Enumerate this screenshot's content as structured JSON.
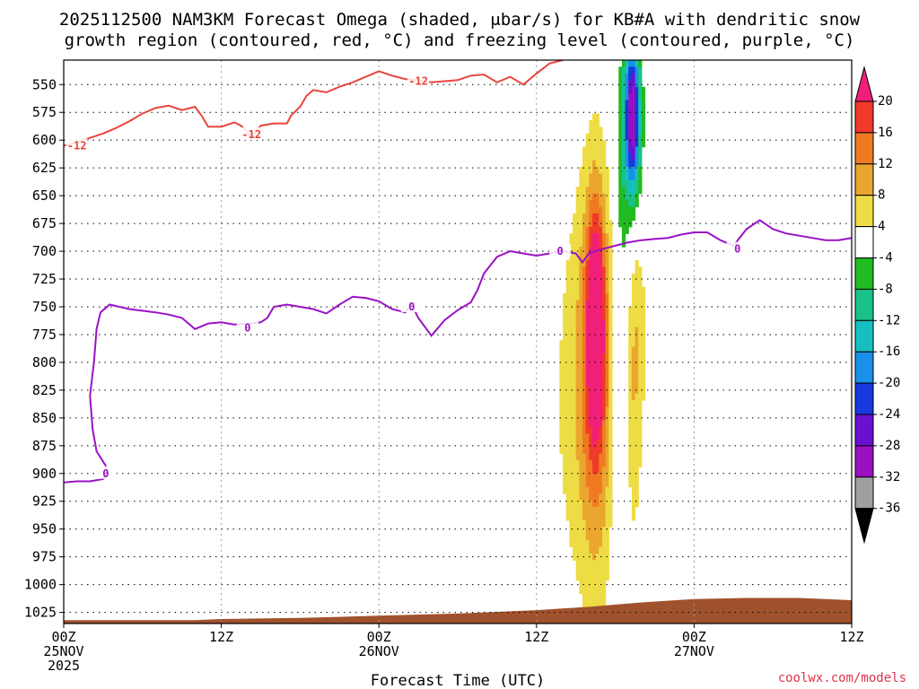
{
  "chart_data": {
    "type": "heatmap",
    "title": "2025112500 NAM3KM Forecast Omega (shaded, μbar/s) for KB#A with dendritic snow",
    "subtitle": "growth region (contoured, red, °C) and freezing level (contoured, purple, °C)",
    "xlabel": "Forecast Time (UTC)",
    "ylabel": "",
    "credit": "coolwx.com/models",
    "x_unit": "forecast hours",
    "xlim": [
      0,
      60
    ],
    "x_ticks": [
      {
        "h": 0,
        "l1": "00Z",
        "l2": "25NOV",
        "l3": "2025"
      },
      {
        "h": 12,
        "l1": "12Z",
        "l2": "",
        "l3": ""
      },
      {
        "h": 24,
        "l1": "00Z",
        "l2": "26NOV",
        "l3": ""
      },
      {
        "h": 36,
        "l1": "12Z",
        "l2": "",
        "l3": ""
      },
      {
        "h": 48,
        "l1": "00Z",
        "l2": "27NOV",
        "l3": ""
      },
      {
        "h": 60,
        "l1": "12Z",
        "l2": "",
        "l3": ""
      }
    ],
    "y_unit": "hPa",
    "ylim": [
      1035,
      528
    ],
    "y_ticks": [
      "550",
      "575",
      "600",
      "625",
      "650",
      "675",
      "700",
      "725",
      "750",
      "775",
      "800",
      "825",
      "850",
      "875",
      "900",
      "925",
      "950",
      "975",
      "1000",
      "1025"
    ],
    "colorbar": {
      "levels": [
        "20",
        "16",
        "12",
        "8",
        "4",
        "-4",
        "-8",
        "-12",
        "-16",
        "-20",
        "-24",
        "-28",
        "-32",
        "-36"
      ],
      "colors": [
        "#e8305a",
        "#f03a2a",
        "#f07a22",
        "#eaa62e",
        "#eedc44",
        "#ffffff",
        "#22bb22",
        "#19c28a",
        "#16c0c0",
        "#1a90e8",
        "#1838e0",
        "#6a10d0",
        "#9a10c0",
        "#a0a0a0",
        "#000000"
      ],
      "extend_top": "#f0207a",
      "extend_bottom": "#000000"
    },
    "terrain_color": "#a0522d",
    "terrain_surface": [
      [
        0,
        1032
      ],
      [
        10,
        1032
      ],
      [
        12,
        1031
      ],
      [
        18,
        1030
      ],
      [
        24,
        1028
      ],
      [
        30,
        1026
      ],
      [
        36,
        1023
      ],
      [
        40,
        1020
      ],
      [
        44,
        1016
      ],
      [
        48,
        1013
      ],
      [
        52,
        1012
      ],
      [
        56,
        1012
      ],
      [
        58,
        1013
      ],
      [
        60,
        1014
      ]
    ],
    "dgz_top_contour": {
      "label": "-12",
      "points": [
        [
          0,
          605
        ],
        [
          1,
          602
        ],
        [
          2,
          598
        ],
        [
          3,
          594
        ],
        [
          4,
          589
        ],
        [
          5,
          583
        ],
        [
          6,
          576
        ],
        [
          7,
          571
        ],
        [
          8,
          569
        ],
        [
          9,
          573
        ],
        [
          10,
          570
        ],
        [
          10.5,
          578
        ],
        [
          11,
          588
        ],
        [
          12,
          588
        ],
        [
          13,
          584
        ],
        [
          13.5,
          587
        ],
        [
          14.3,
          597
        ],
        [
          15,
          587
        ],
        [
          16,
          585
        ],
        [
          17,
          585
        ],
        [
          17.3,
          578
        ],
        [
          18,
          570
        ],
        [
          18.5,
          560
        ],
        [
          19,
          555
        ],
        [
          20,
          557
        ],
        [
          21,
          552
        ],
        [
          22,
          548
        ],
        [
          23,
          543
        ],
        [
          24,
          538
        ],
        [
          25,
          542
        ],
        [
          26,
          545
        ],
        [
          27,
          546
        ],
        [
          28,
          548
        ],
        [
          29,
          547
        ],
        [
          30,
          546
        ],
        [
          31,
          542
        ],
        [
          32,
          541
        ],
        [
          33,
          548
        ],
        [
          34,
          543
        ],
        [
          35,
          550
        ],
        [
          36,
          540
        ],
        [
          37,
          531
        ],
        [
          38,
          528
        ]
      ],
      "label_positions": [
        [
          1,
          605
        ],
        [
          14.3,
          595
        ],
        [
          27,
          547
        ]
      ]
    },
    "freezing_level_contour": {
      "label": "0",
      "points": [
        [
          0,
          908
        ],
        [
          1,
          907
        ],
        [
          2,
          907
        ],
        [
          3,
          905
        ],
        [
          3.3,
          900
        ],
        [
          3.2,
          893
        ],
        [
          2.5,
          880
        ],
        [
          2.2,
          860
        ],
        [
          2,
          830
        ],
        [
          2.3,
          800
        ],
        [
          2.5,
          770
        ],
        [
          2.8,
          755
        ],
        [
          3.5,
          748
        ],
        [
          5,
          752
        ],
        [
          7,
          755
        ],
        [
          8,
          757
        ],
        [
          9,
          760
        ],
        [
          10,
          770
        ],
        [
          11,
          765
        ],
        [
          12,
          764
        ],
        [
          13,
          766
        ],
        [
          14,
          765
        ],
        [
          15,
          764
        ],
        [
          15.5,
          760
        ],
        [
          16,
          750
        ],
        [
          17,
          748
        ],
        [
          18,
          750
        ],
        [
          19,
          752
        ],
        [
          20,
          756
        ],
        [
          21,
          748
        ],
        [
          22,
          741
        ],
        [
          23,
          742
        ],
        [
          24,
          745
        ],
        [
          25,
          752
        ],
        [
          26,
          755
        ],
        [
          26.5,
          748
        ],
        [
          27,
          760
        ],
        [
          28,
          776
        ],
        [
          29,
          762
        ],
        [
          30,
          753
        ],
        [
          31,
          746
        ],
        [
          31.5,
          735
        ],
        [
          32,
          720
        ],
        [
          33,
          705
        ],
        [
          34,
          700
        ],
        [
          35,
          702
        ],
        [
          36,
          704
        ],
        [
          37,
          702
        ],
        [
          38,
          700
        ],
        [
          39,
          702
        ],
        [
          39.5,
          710
        ],
        [
          40,
          702
        ],
        [
          41,
          698
        ],
        [
          42,
          695
        ],
        [
          43,
          692
        ],
        [
          44,
          690
        ],
        [
          45,
          689
        ],
        [
          46,
          688
        ],
        [
          47,
          685
        ],
        [
          48,
          683
        ],
        [
          49,
          683
        ],
        [
          50,
          690
        ],
        [
          51,
          695
        ],
        [
          52,
          680
        ],
        [
          53,
          672
        ],
        [
          54,
          680
        ],
        [
          55,
          684
        ],
        [
          56,
          686
        ],
        [
          57,
          688
        ],
        [
          58,
          690
        ],
        [
          59,
          690
        ],
        [
          60,
          688
        ]
      ],
      "label_positions": [
        [
          3.2,
          900
        ],
        [
          14.0,
          769
        ],
        [
          26.5,
          750
        ],
        [
          37.8,
          700
        ],
        [
          51.3,
          698
        ]
      ]
    },
    "omega_blobs": [
      {
        "t": 40.5,
        "p": 830,
        "rt": 1.6,
        "rp": 215,
        "v": 8
      },
      {
        "t": 40.5,
        "p": 790,
        "rt": 1.1,
        "rp": 150,
        "v": 12
      },
      {
        "t": 40.5,
        "p": 760,
        "rt": 0.6,
        "rp": 90,
        "v": 16
      },
      {
        "t": 38.3,
        "p": 830,
        "rt": 1.5,
        "rp": 200,
        "v": 4
      },
      {
        "t": 43.8,
        "p": 770,
        "rt": 0.7,
        "rp": 90,
        "v": 4
      },
      {
        "t": 43.2,
        "p": 840,
        "rt": 0.8,
        "rp": 150,
        "v": 8
      },
      {
        "t": 42.5,
        "p": 800,
        "rt": 0.7,
        "rp": 250,
        "v": -8
      },
      {
        "t": 43.3,
        "p": 580,
        "rt": 0.6,
        "rp": 70,
        "v": -32
      }
    ]
  }
}
